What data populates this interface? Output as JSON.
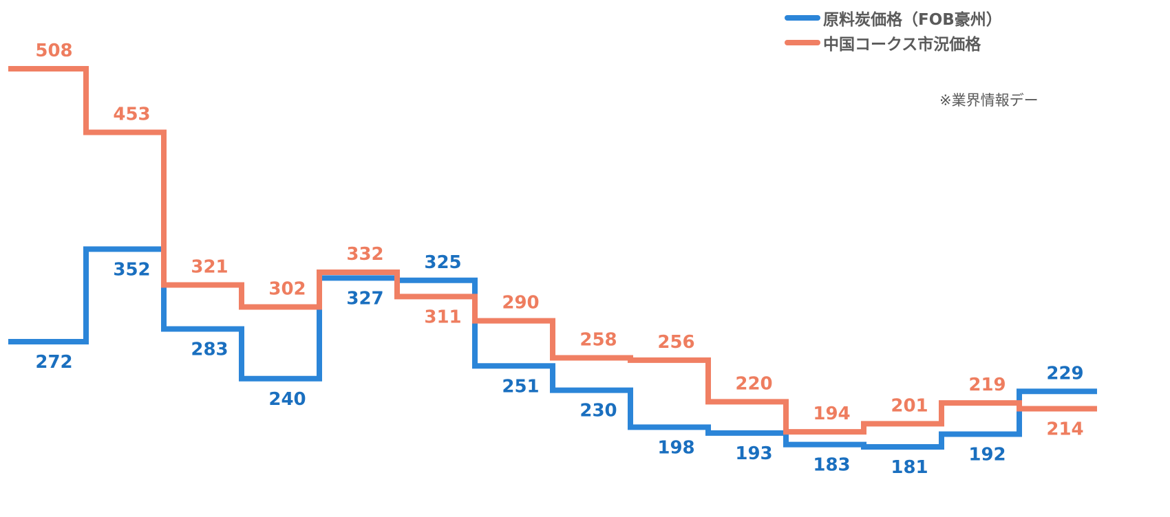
{
  "chart_data": {
    "type": "line",
    "step": true,
    "title": "",
    "xlabel": "",
    "ylabel": "",
    "grid": false,
    "legend_position": "top-right",
    "ylim": [
      170,
      520
    ],
    "series": [
      {
        "name": "原料炭価格（FOB豪州）",
        "color": "#2b85d8",
        "label_color": "#1a6fbf",
        "values": [
          272,
          352,
          283,
          240,
          327,
          325,
          251,
          230,
          198,
          193,
          183,
          181,
          192,
          229
        ]
      },
      {
        "name": "中国コークス市況価格",
        "color": "#f07f63",
        "label_color": "#ee7d5f",
        "values": [
          508,
          453,
          321,
          302,
          332,
          311,
          290,
          258,
          256,
          220,
          194,
          201,
          219,
          214
        ]
      }
    ]
  },
  "note": "※業界情報デー"
}
